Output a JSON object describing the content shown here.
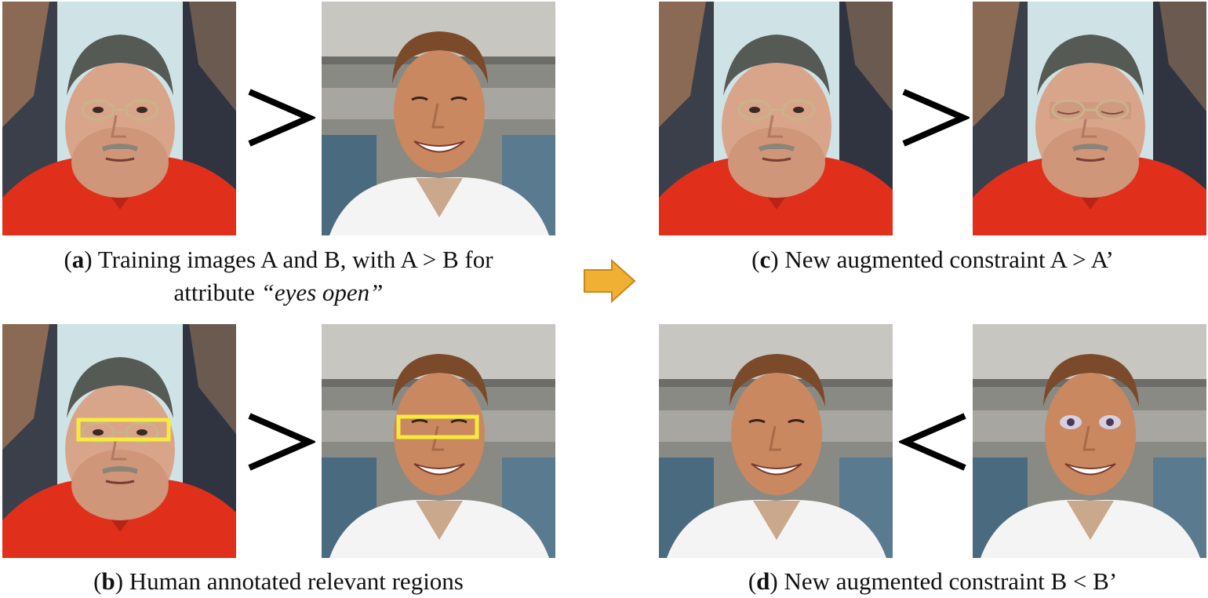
{
  "panels": {
    "a": {
      "letter": "a",
      "caption_line1": "Training images A and B, with A > B for",
      "caption_line2_prefix": "attribute",
      "caption_line2_italic": "“eyes open”",
      "comparator": ">"
    },
    "b": {
      "letter": "b",
      "caption": "Human annotated relevant regions",
      "comparator": ">"
    },
    "c": {
      "letter": "c",
      "caption": "New augmented constraint A > A’",
      "comparator": ">"
    },
    "d": {
      "letter": "d",
      "caption": "New augmented constraint B < B’",
      "comparator": "<"
    }
  },
  "colors": {
    "arrow_fill": "#f0b034",
    "arrow_stroke": "#c9871a",
    "annotation_box": "#f6ea3c",
    "shirt_red": "#e0301c",
    "shirt_white": "#f4f4f4"
  },
  "icons": {
    "transition_arrow": "right-arrow-icon"
  }
}
